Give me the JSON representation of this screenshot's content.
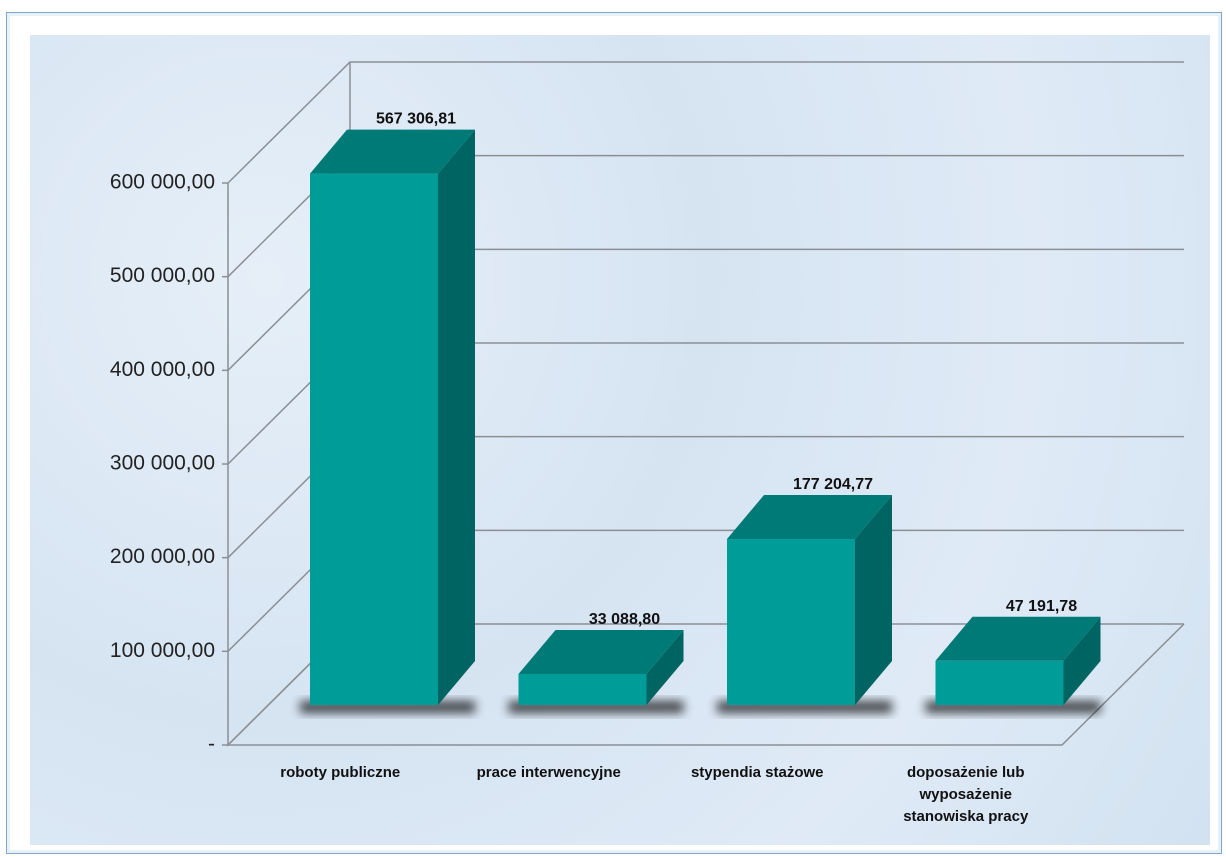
{
  "chart_data": {
    "type": "bar3d",
    "categories": [
      "roboty publiczne",
      "prace interwencyjne",
      "stypendia stażowe",
      "doposażenie lub wyposażenie stanowiska pracy"
    ],
    "values": [
      567306.81,
      33088.8,
      177204.77,
      47191.78
    ],
    "value_labels": [
      "567 306,81",
      "33 088,80",
      "177 204,77",
      "47 191,78"
    ],
    "color": "#009c98",
    "ylim": [
      0,
      600000
    ],
    "yticks": [
      {
        "value": 0,
        "label": "-"
      },
      {
        "value": 100000,
        "label": "100 000,00"
      },
      {
        "value": 200000,
        "label": "200 000,00"
      },
      {
        "value": 300000,
        "label": "300 000,00"
      },
      {
        "value": 400000,
        "label": "400 000,00"
      },
      {
        "value": 500000,
        "label": "500 000,00"
      },
      {
        "value": 600000,
        "label": "600 000,00"
      }
    ],
    "grid": true
  }
}
